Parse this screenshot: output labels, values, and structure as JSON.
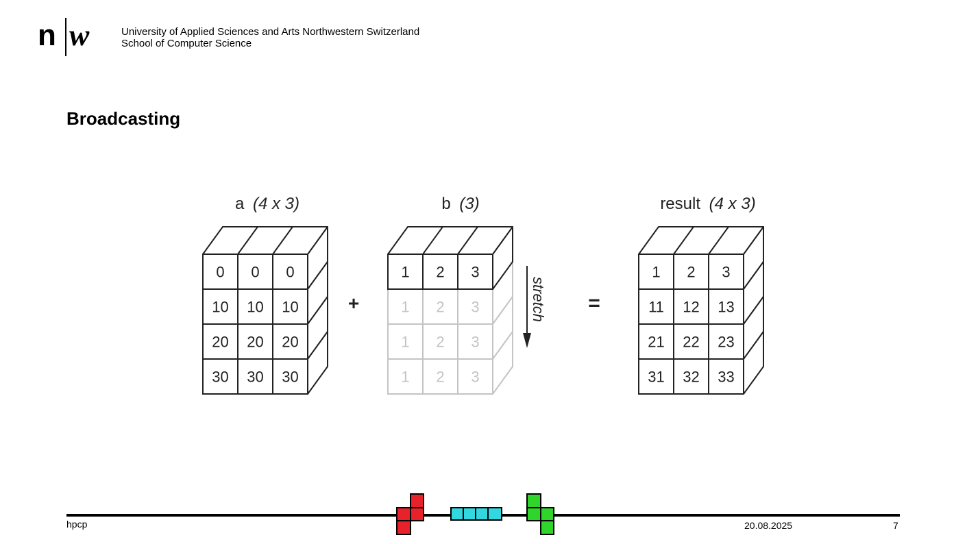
{
  "header": {
    "institution_line1": "University of Applied Sciences and Arts Northwestern Switzerland",
    "institution_line2": "School of Computer Science"
  },
  "slide": {
    "title": "Broadcasting"
  },
  "diagram": {
    "array_a": {
      "name": "a",
      "shape": "(4 x 3)",
      "rows": [
        [
          "0",
          "0",
          "0"
        ],
        [
          "10",
          "10",
          "10"
        ],
        [
          "20",
          "20",
          "20"
        ],
        [
          "30",
          "30",
          "30"
        ]
      ]
    },
    "plus_operator": "+",
    "array_b": {
      "name": "b",
      "shape": "(3)",
      "rows": [
        [
          "1",
          "2",
          "3"
        ],
        [
          "1",
          "2",
          "3"
        ],
        [
          "1",
          "2",
          "3"
        ],
        [
          "1",
          "2",
          "3"
        ]
      ],
      "stretch_label": "stretch"
    },
    "equals_operator": "=",
    "array_result": {
      "name": "result",
      "shape": "(4 x 3)",
      "rows": [
        [
          "1",
          "2",
          "3"
        ],
        [
          "11",
          "12",
          "13"
        ],
        [
          "21",
          "22",
          "23"
        ],
        [
          "31",
          "32",
          "33"
        ]
      ]
    },
    "colors": {
      "solid": "#222222",
      "faded": "#c4c4c4"
    }
  },
  "footer": {
    "left": "hpcp",
    "date": "20.08.2025",
    "page": "7",
    "tetris_colors": {
      "red": "#e8222a",
      "cyan": "#31d8e0",
      "green": "#2fd52a"
    }
  }
}
